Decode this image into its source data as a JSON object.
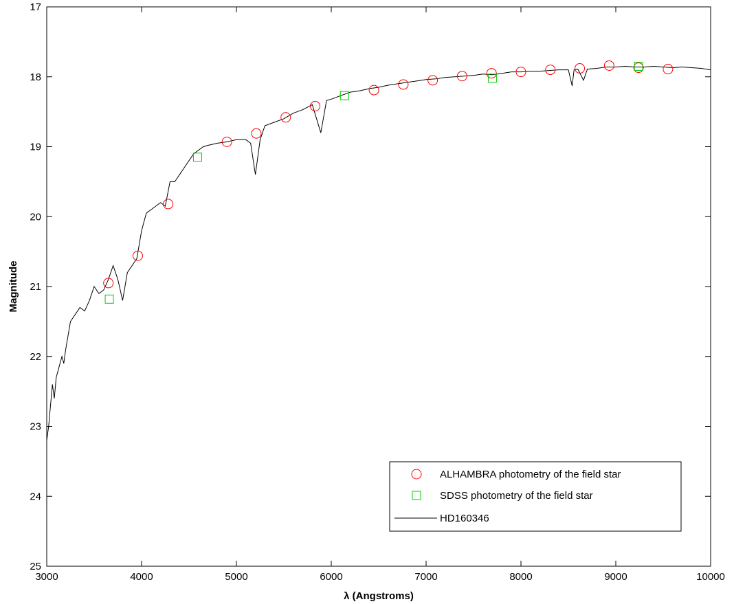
{
  "chart_data": {
    "type": "line",
    "title": "",
    "xlabel": "λ (Angstroms)",
    "ylabel": "Magnitude",
    "xlim": [
      3000,
      10000
    ],
    "ylim": [
      17,
      25
    ],
    "y_inverted": true,
    "grid": false,
    "legend_placement": "bottom-right",
    "x_ticks": [
      3000,
      4000,
      5000,
      6000,
      7000,
      8000,
      9000,
      10000
    ],
    "y_ticks": [
      17,
      18,
      19,
      20,
      21,
      22,
      23,
      24,
      25
    ],
    "series": [
      {
        "name": "ALHAMBRA photometry of the field star",
        "kind": "scatter",
        "marker": "circle",
        "color": "#ff0000",
        "x": [
          3650,
          3960,
          4280,
          4900,
          5210,
          5520,
          5830,
          6450,
          6760,
          7070,
          7380,
          7690,
          8000,
          8310,
          8620,
          8930,
          9240,
          9550
        ],
        "y": [
          20.95,
          20.56,
          19.82,
          18.93,
          18.81,
          18.58,
          18.42,
          18.19,
          18.11,
          18.05,
          17.99,
          17.95,
          17.93,
          17.9,
          17.88,
          17.84,
          17.87,
          17.89
        ]
      },
      {
        "name": "SDSS photometry of the field star",
        "kind": "scatter",
        "marker": "square",
        "color": "#00cc00",
        "x": [
          3660,
          4590,
          6140,
          7700,
          9240
        ],
        "y": [
          21.18,
          19.15,
          18.27,
          18.02,
          17.85
        ]
      },
      {
        "name": "HD160346",
        "kind": "line",
        "color": "#000000",
        "x": [
          3000,
          3020,
          3040,
          3060,
          3080,
          3100,
          3120,
          3140,
          3160,
          3180,
          3200,
          3250,
          3300,
          3350,
          3400,
          3450,
          3500,
          3550,
          3600,
          3650,
          3700,
          3750,
          3800,
          3850,
          3900,
          3950,
          4000,
          4050,
          4100,
          4150,
          4200,
          4250,
          4300,
          4350,
          4400,
          4450,
          4500,
          4550,
          4600,
          4650,
          4700,
          4800,
          4900,
          5000,
          5100,
          5150,
          5200,
          5250,
          5300,
          5400,
          5500,
          5600,
          5700,
          5800,
          5890,
          5950,
          6000,
          6100,
          6200,
          6300,
          6400,
          6500,
          6600,
          6700,
          6800,
          6900,
          7000,
          7100,
          7200,
          7300,
          7400,
          7500,
          7600,
          7700,
          7800,
          7900,
          8000,
          8100,
          8200,
          8300,
          8400,
          8500,
          8540,
          8560,
          8600,
          8660,
          8700,
          8800,
          8900,
          9000,
          9100,
          9200,
          9300,
          9400,
          9500,
          9600,
          9700,
          9800,
          9900,
          10000
        ],
        "y": [
          23.2,
          23.0,
          22.7,
          22.4,
          22.6,
          22.3,
          22.2,
          22.1,
          22.0,
          22.1,
          21.9,
          21.5,
          21.4,
          21.3,
          21.35,
          21.2,
          21.0,
          21.1,
          21.05,
          20.9,
          20.7,
          20.9,
          21.2,
          20.8,
          20.7,
          20.6,
          20.2,
          19.95,
          19.9,
          19.85,
          19.8,
          19.85,
          19.5,
          19.5,
          19.4,
          19.3,
          19.2,
          19.1,
          19.05,
          19.0,
          18.98,
          18.95,
          18.93,
          18.9,
          18.9,
          18.95,
          19.4,
          18.9,
          18.7,
          18.65,
          18.6,
          18.52,
          18.47,
          18.4,
          18.8,
          18.34,
          18.32,
          18.27,
          18.22,
          18.2,
          18.17,
          18.15,
          18.12,
          18.1,
          18.08,
          18.06,
          18.04,
          18.03,
          18.01,
          18.0,
          17.99,
          17.98,
          17.96,
          17.97,
          17.95,
          17.93,
          17.93,
          17.92,
          17.92,
          17.91,
          17.9,
          17.9,
          18.13,
          17.9,
          17.89,
          18.05,
          17.89,
          17.88,
          17.86,
          17.86,
          17.85,
          17.86,
          17.86,
          17.85,
          17.86,
          17.87,
          17.86,
          17.87,
          17.88,
          17.9
        ]
      }
    ]
  }
}
